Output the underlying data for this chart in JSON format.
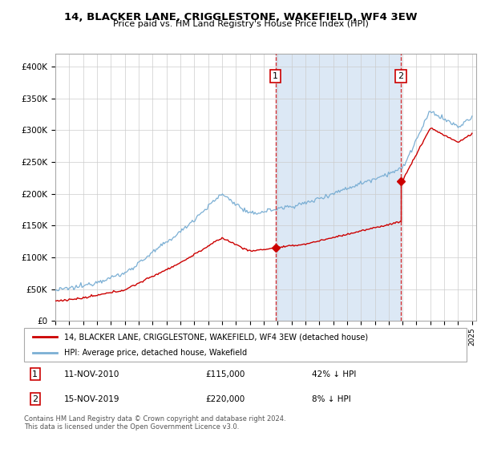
{
  "title": "14, BLACKER LANE, CRIGGLESTONE, WAKEFIELD, WF4 3EW",
  "subtitle": "Price paid vs. HM Land Registry's House Price Index (HPI)",
  "ylabel_ticks": [
    "£0",
    "£50K",
    "£100K",
    "£150K",
    "£200K",
    "£250K",
    "£300K",
    "£350K",
    "£400K"
  ],
  "ytick_vals": [
    0,
    50000,
    100000,
    150000,
    200000,
    250000,
    300000,
    350000,
    400000
  ],
  "ylim": [
    0,
    420000
  ],
  "sale1_x": 2010.86,
  "sale1_price": 115000,
  "sale2_x": 2019.87,
  "sale2_price": 220000,
  "annotation1_date": "11-NOV-2010",
  "annotation1_price": "£115,000",
  "annotation1_pct": "42% ↓ HPI",
  "annotation2_date": "15-NOV-2019",
  "annotation2_price": "£220,000",
  "annotation2_pct": "8% ↓ HPI",
  "legend_line1": "14, BLACKER LANE, CRIGGLESTONE, WAKEFIELD, WF4 3EW (detached house)",
  "legend_line2": "HPI: Average price, detached house, Wakefield",
  "footnote": "Contains HM Land Registry data © Crown copyright and database right 2024.\nThis data is licensed under the Open Government Licence v3.0.",
  "red_color": "#cc0000",
  "blue_color": "#7bafd4",
  "bg_color": "#dce8f5",
  "plot_bg": "#ffffff",
  "vline_color": "#cc0000",
  "grid_color": "#cccccc"
}
